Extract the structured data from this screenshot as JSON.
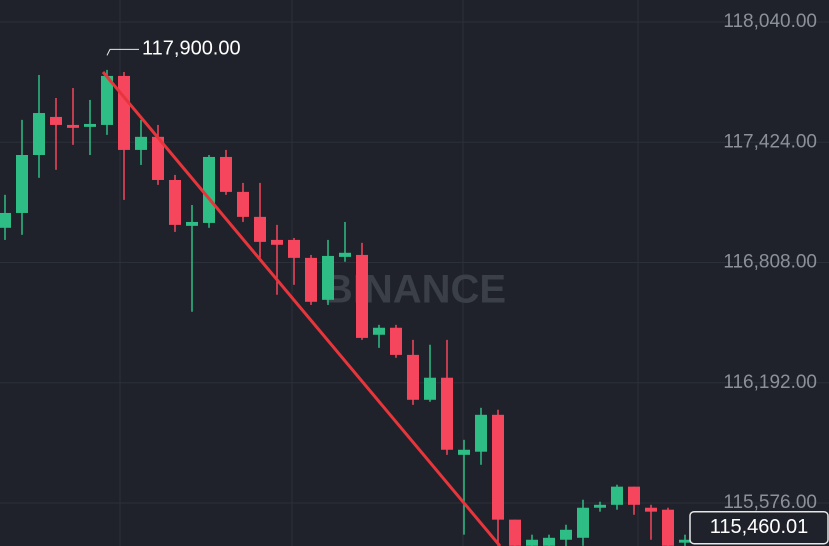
{
  "chart_data": {
    "type": "candlestick",
    "watermark": "BINANCE",
    "categories": [
      null,
      null,
      null,
      null,
      null,
      null,
      null,
      null,
      null,
      null,
      null,
      null,
      null,
      null,
      null,
      null,
      null,
      null,
      null,
      null,
      null,
      null,
      null,
      null,
      null,
      null,
      null,
      null,
      null,
      null,
      null,
      null,
      null,
      null,
      null,
      null,
      null,
      null,
      null,
      null,
      null
    ],
    "open": [
      116986,
      117062,
      117359,
      117554,
      117513,
      117503,
      117513,
      117764,
      117385,
      117452,
      117231,
      116996,
      117011,
      117349,
      117170,
      117042,
      116924,
      116924,
      116832,
      116617,
      116837,
      116847,
      116438,
      116474,
      116335,
      116105,
      116218,
      115823,
      115839,
      116028,
      115491,
      115357,
      115357,
      115388,
      115398,
      115552,
      115567,
      115660,
      115552,
      115542,
      115373
    ],
    "high": [
      117155,
      117539,
      117769,
      117651,
      117702,
      117641,
      117795,
      117784,
      117539,
      117513,
      117257,
      117103,
      117359,
      117385,
      117216,
      117216,
      117001,
      116934,
      116847,
      116924,
      117016,
      116909,
      116489,
      116489,
      116412,
      116387,
      116412,
      115900,
      116064,
      116054,
      115491,
      115414,
      115414,
      115465,
      115593,
      115583,
      115670,
      115660,
      115567,
      115552,
      115414
    ],
    "low": [
      116924,
      116950,
      117242,
      117283,
      117411,
      117359,
      117462,
      117129,
      117308,
      117206,
      116965,
      116556,
      116986,
      117155,
      117016,
      116832,
      116643,
      116694,
      116591,
      116591,
      116812,
      116412,
      116371,
      116320,
      116079,
      116095,
      115823,
      115414,
      115772,
      115357,
      115286,
      115286,
      115286,
      115337,
      115357,
      115532,
      115542,
      115516,
      115388,
      115286,
      115337
    ],
    "close": [
      117062,
      117359,
      117574,
      117513,
      117498,
      117518,
      117764,
      117385,
      117452,
      117231,
      117001,
      117016,
      117349,
      117170,
      117042,
      116914,
      116899,
      116832,
      116607,
      116842,
      116858,
      116422,
      116474,
      116335,
      116105,
      116218,
      115849,
      115849,
      116028,
      115491,
      115357,
      115388,
      115398,
      115439,
      115552,
      115567,
      115660,
      115567,
      115532,
      115357,
      115388
    ],
    "up_color": "#2ebd85",
    "down_color": "#f6465d",
    "ylim": [
      115356,
      118153
    ],
    "yticks": [
      {
        "value": 118040,
        "label": "118,040.00"
      },
      {
        "value": 117424,
        "label": "117,424.00"
      },
      {
        "value": 116808,
        "label": "116,808.00"
      },
      {
        "value": 116192,
        "label": "116,192.00"
      },
      {
        "value": 115576,
        "label": "115,576.00"
      }
    ],
    "grid": true,
    "high_label": {
      "value": 117900,
      "label": "117,900.00"
    },
    "last_price": {
      "value": 115460.01,
      "label": "115,460.01"
    }
  }
}
